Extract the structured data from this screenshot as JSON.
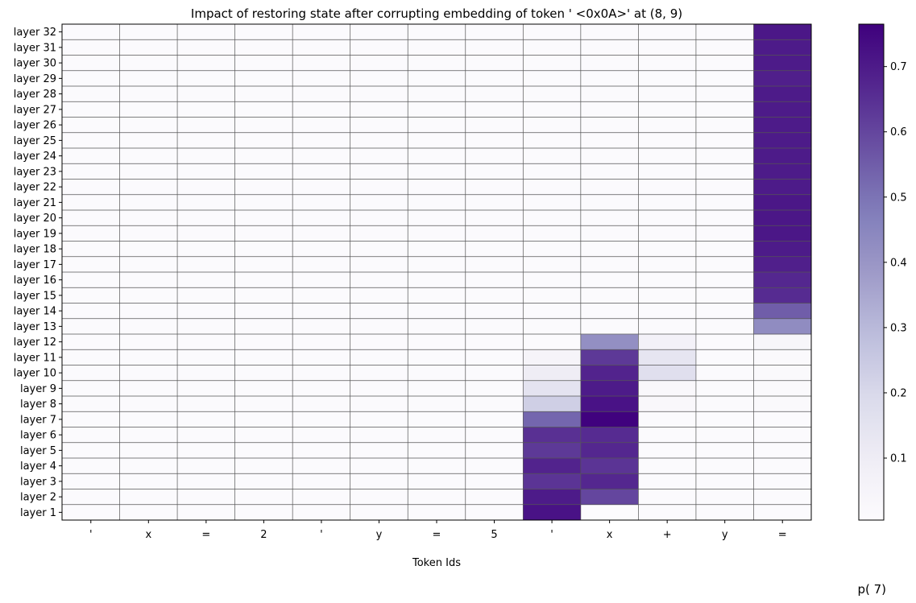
{
  "chart_data": {
    "type": "heatmap",
    "title": "Impact of restoring state after corrupting embedding of token ' <0x0A>' at (8, 9)",
    "xlabel": "Token Ids",
    "corner_label": "p( 7)",
    "x_categories": [
      "'",
      "x",
      "=",
      "2",
      "'",
      "y",
      "=",
      "5",
      "'",
      "x",
      "+",
      "y",
      "="
    ],
    "y_categories": [
      "layer 1",
      "layer 2",
      "layer 3",
      "layer 4",
      "layer 5",
      "layer 6",
      "layer 7",
      "layer 8",
      "layer 9",
      "layer 10",
      "layer 11",
      "layer 12",
      "layer 13",
      "layer 14",
      "layer 15",
      "layer 16",
      "layer 17",
      "layer 18",
      "layer 19",
      "layer 20",
      "layer 21",
      "layer 22",
      "layer 23",
      "layer 24",
      "layer 25",
      "layer 26",
      "layer 27",
      "layer 28",
      "layer 29",
      "layer 30",
      "layer 31",
      "layer 32"
    ],
    "colormap": "Purples",
    "vmin": 0.005,
    "vmax": 0.765,
    "colorbar_ticks": [
      0.1,
      0.2,
      0.3,
      0.4,
      0.5,
      0.6,
      0.7
    ],
    "colorbar_tick_labels": [
      "0.1",
      "0.2",
      "0.3",
      "0.4",
      "0.5",
      "0.6",
      "0.7"
    ],
    "values": [
      [
        0.01,
        0.01,
        0.01,
        0.01,
        0.01,
        0.01,
        0.01,
        0.01,
        0.72,
        0.005,
        0.01,
        0.01,
        0.01
      ],
      [
        0.01,
        0.01,
        0.01,
        0.01,
        0.01,
        0.01,
        0.01,
        0.01,
        0.7,
        0.6,
        0.01,
        0.01,
        0.01
      ],
      [
        0.01,
        0.01,
        0.01,
        0.01,
        0.01,
        0.01,
        0.01,
        0.01,
        0.64,
        0.67,
        0.01,
        0.01,
        0.01
      ],
      [
        0.01,
        0.01,
        0.01,
        0.01,
        0.01,
        0.01,
        0.01,
        0.01,
        0.68,
        0.64,
        0.01,
        0.01,
        0.01
      ],
      [
        0.01,
        0.01,
        0.01,
        0.01,
        0.01,
        0.01,
        0.01,
        0.01,
        0.63,
        0.67,
        0.01,
        0.01,
        0.01
      ],
      [
        0.01,
        0.01,
        0.01,
        0.01,
        0.01,
        0.01,
        0.01,
        0.01,
        0.65,
        0.66,
        0.01,
        0.01,
        0.01
      ],
      [
        0.01,
        0.01,
        0.01,
        0.01,
        0.01,
        0.01,
        0.01,
        0.01,
        0.53,
        0.76,
        0.01,
        0.01,
        0.01
      ],
      [
        0.01,
        0.01,
        0.01,
        0.01,
        0.01,
        0.01,
        0.01,
        0.01,
        0.23,
        0.72,
        0.03,
        0.01,
        0.02
      ],
      [
        0.01,
        0.01,
        0.01,
        0.01,
        0.01,
        0.01,
        0.01,
        0.01,
        0.15,
        0.7,
        0.03,
        0.01,
        0.02
      ],
      [
        0.01,
        0.01,
        0.01,
        0.01,
        0.01,
        0.01,
        0.01,
        0.01,
        0.1,
        0.68,
        0.17,
        0.01,
        0.02
      ],
      [
        0.01,
        0.01,
        0.01,
        0.01,
        0.01,
        0.01,
        0.01,
        0.01,
        0.05,
        0.63,
        0.14,
        0.01,
        0.02
      ],
      [
        0.01,
        0.01,
        0.01,
        0.01,
        0.01,
        0.01,
        0.01,
        0.01,
        0.01,
        0.42,
        0.07,
        0.01,
        0.04
      ],
      [
        0.01,
        0.01,
        0.01,
        0.01,
        0.01,
        0.01,
        0.01,
        0.01,
        0.01,
        0.01,
        0.01,
        0.01,
        0.43
      ],
      [
        0.01,
        0.01,
        0.01,
        0.01,
        0.01,
        0.01,
        0.01,
        0.01,
        0.01,
        0.01,
        0.01,
        0.01,
        0.55
      ],
      [
        0.01,
        0.01,
        0.01,
        0.01,
        0.01,
        0.01,
        0.01,
        0.01,
        0.01,
        0.01,
        0.01,
        0.01,
        0.66
      ],
      [
        0.01,
        0.01,
        0.01,
        0.01,
        0.01,
        0.01,
        0.01,
        0.01,
        0.01,
        0.01,
        0.01,
        0.01,
        0.67
      ],
      [
        0.01,
        0.01,
        0.01,
        0.01,
        0.01,
        0.01,
        0.01,
        0.01,
        0.01,
        0.01,
        0.01,
        0.01,
        0.69
      ],
      [
        0.01,
        0.01,
        0.01,
        0.01,
        0.01,
        0.01,
        0.01,
        0.01,
        0.01,
        0.01,
        0.01,
        0.01,
        0.7
      ],
      [
        0.01,
        0.01,
        0.01,
        0.01,
        0.01,
        0.01,
        0.01,
        0.01,
        0.01,
        0.01,
        0.01,
        0.01,
        0.71
      ],
      [
        0.01,
        0.01,
        0.01,
        0.01,
        0.01,
        0.01,
        0.01,
        0.01,
        0.01,
        0.01,
        0.01,
        0.01,
        0.71
      ],
      [
        0.01,
        0.01,
        0.01,
        0.01,
        0.01,
        0.01,
        0.01,
        0.01,
        0.01,
        0.01,
        0.01,
        0.01,
        0.71
      ],
      [
        0.01,
        0.01,
        0.01,
        0.01,
        0.01,
        0.01,
        0.01,
        0.01,
        0.01,
        0.01,
        0.01,
        0.01,
        0.7
      ],
      [
        0.01,
        0.01,
        0.01,
        0.01,
        0.01,
        0.01,
        0.01,
        0.01,
        0.01,
        0.01,
        0.01,
        0.01,
        0.7
      ],
      [
        0.01,
        0.01,
        0.01,
        0.01,
        0.01,
        0.01,
        0.01,
        0.01,
        0.01,
        0.01,
        0.01,
        0.01,
        0.7
      ],
      [
        0.01,
        0.01,
        0.01,
        0.01,
        0.01,
        0.01,
        0.01,
        0.01,
        0.01,
        0.01,
        0.01,
        0.01,
        0.7
      ],
      [
        0.01,
        0.01,
        0.01,
        0.01,
        0.01,
        0.01,
        0.01,
        0.01,
        0.01,
        0.01,
        0.01,
        0.01,
        0.7
      ],
      [
        0.01,
        0.01,
        0.01,
        0.01,
        0.01,
        0.01,
        0.01,
        0.01,
        0.01,
        0.01,
        0.01,
        0.01,
        0.7
      ],
      [
        0.01,
        0.01,
        0.01,
        0.01,
        0.01,
        0.01,
        0.01,
        0.01,
        0.01,
        0.01,
        0.01,
        0.01,
        0.7
      ],
      [
        0.01,
        0.01,
        0.01,
        0.01,
        0.01,
        0.01,
        0.01,
        0.01,
        0.01,
        0.01,
        0.01,
        0.01,
        0.69
      ],
      [
        0.01,
        0.01,
        0.01,
        0.01,
        0.01,
        0.01,
        0.01,
        0.01,
        0.01,
        0.01,
        0.01,
        0.01,
        0.7
      ],
      [
        0.01,
        0.01,
        0.01,
        0.01,
        0.01,
        0.01,
        0.01,
        0.01,
        0.01,
        0.01,
        0.01,
        0.01,
        0.7
      ],
      [
        0.01,
        0.01,
        0.01,
        0.01,
        0.01,
        0.01,
        0.01,
        0.01,
        0.01,
        0.01,
        0.01,
        0.01,
        0.71
      ]
    ]
  }
}
